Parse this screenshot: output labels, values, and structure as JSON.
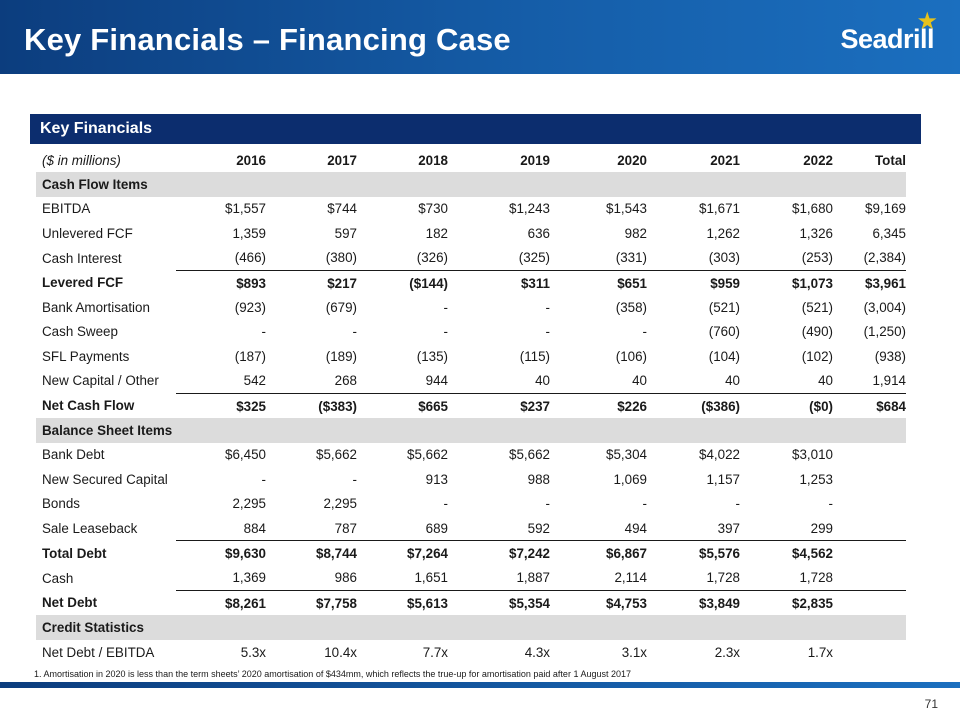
{
  "header": {
    "title": "Key Financials – Financing Case",
    "logo_text": "Seadrill",
    "accent_color": "#155da8",
    "navy_color": "#0c2d6e",
    "star_color": "#e6c21c"
  },
  "section": {
    "title": "Key Financials"
  },
  "table": {
    "units_label": "($ in millions)",
    "columns": [
      "2016",
      "2017",
      "2018",
      "2019",
      "2020",
      "2021",
      "2022",
      "Total"
    ],
    "rows": [
      {
        "label": "Cash Flow Items",
        "values": [
          "",
          "",
          "",
          "",
          "",
          "",
          "",
          ""
        ]
      },
      {
        "label": "EBITDA",
        "values": [
          "$1,557",
          "$744",
          "$730",
          "$1,243",
          "$1,543",
          "$1,671",
          "$1,680",
          "$9,169"
        ]
      },
      {
        "label": "Unlevered FCF",
        "values": [
          "1,359",
          "597",
          "182",
          "636",
          "982",
          "1,262",
          "1,326",
          "6,345"
        ]
      },
      {
        "label": "Cash Interest",
        "values": [
          "(466)",
          "(380)",
          "(326)",
          "(325)",
          "(331)",
          "(303)",
          "(253)",
          "(2,384)"
        ]
      },
      {
        "label": "Levered FCF",
        "values": [
          "$893",
          "$217",
          "($144)",
          "$311",
          "$651",
          "$959",
          "$1,073",
          "$3,961"
        ]
      },
      {
        "label": "Bank Amortisation",
        "values": [
          "(923)",
          "(679)",
          "-",
          "-",
          "(358)",
          "(521)",
          "(521)",
          "(3,004)"
        ]
      },
      {
        "label": "Cash Sweep",
        "values": [
          "-",
          "-",
          "-",
          "-",
          "-",
          "(760)",
          "(490)",
          "(1,250)"
        ]
      },
      {
        "label": "SFL Payments",
        "values": [
          "(187)",
          "(189)",
          "(135)",
          "(115)",
          "(106)",
          "(104)",
          "(102)",
          "(938)"
        ]
      },
      {
        "label": "New Capital / Other",
        "values": [
          "542",
          "268",
          "944",
          "40",
          "40",
          "40",
          "40",
          "1,914"
        ]
      },
      {
        "label": "Net Cash Flow",
        "values": [
          "$325",
          "($383)",
          "$665",
          "$237",
          "$226",
          "($386)",
          "($0)",
          "$684"
        ]
      },
      {
        "label": "Balance Sheet Items",
        "values": [
          "",
          "",
          "",
          "",
          "",
          "",
          "",
          ""
        ]
      },
      {
        "label": "Bank Debt",
        "values": [
          "$6,450",
          "$5,662",
          "$5,662",
          "$5,662",
          "$5,304",
          "$4,022",
          "$3,010",
          ""
        ]
      },
      {
        "label": "New Secured Capital",
        "values": [
          "-",
          "-",
          "913",
          "988",
          "1,069",
          "1,157",
          "1,253",
          ""
        ]
      },
      {
        "label": "Bonds",
        "values": [
          "2,295",
          "2,295",
          "-",
          "-",
          "-",
          "-",
          "-",
          ""
        ]
      },
      {
        "label": "Sale Leaseback",
        "values": [
          "884",
          "787",
          "689",
          "592",
          "494",
          "397",
          "299",
          ""
        ]
      },
      {
        "label": "Total Debt",
        "values": [
          "$9,630",
          "$8,744",
          "$7,264",
          "$7,242",
          "$6,867",
          "$5,576",
          "$4,562",
          ""
        ]
      },
      {
        "label": "Cash",
        "values": [
          "1,369",
          "986",
          "1,651",
          "1,887",
          "2,114",
          "1,728",
          "1,728",
          ""
        ]
      },
      {
        "label": "Net Debt",
        "values": [
          "$8,261",
          "$7,758",
          "$5,613",
          "$5,354",
          "$4,753",
          "$3,849",
          "$2,835",
          ""
        ]
      },
      {
        "label": "Credit Statistics",
        "values": [
          "",
          "",
          "",
          "",
          "",
          "",
          "",
          ""
        ]
      },
      {
        "label": "Net Debt / EBITDA",
        "values": [
          "5.3x",
          "10.4x",
          "7.7x",
          "4.3x",
          "3.1x",
          "2.3x",
          "1.7x",
          ""
        ]
      }
    ]
  },
  "footnote": "1. Amortisation in 2020 is less than the term sheets’ 2020 amortisation of $434mm, which reflects the true-up for amortisation paid after 1 August 2017",
  "page_number": "71"
}
